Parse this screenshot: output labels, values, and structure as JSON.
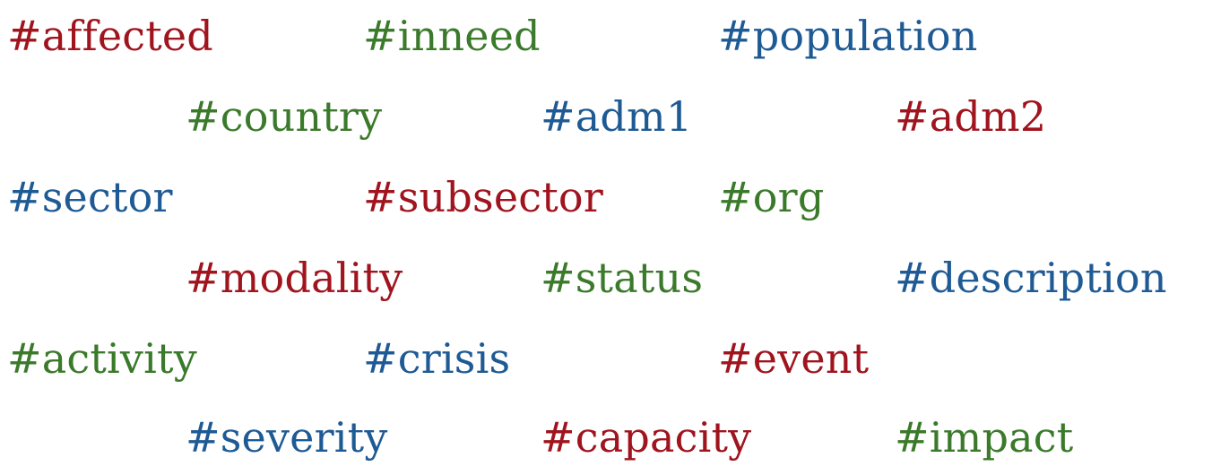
{
  "colors": {
    "red": "#a0141e",
    "green": "#3a7a2a",
    "blue": "#1e5a94"
  },
  "tags": [
    {
      "text": "#affected",
      "color": "red"
    },
    {
      "text": "#inneed",
      "color": "green"
    },
    {
      "text": "#population",
      "color": "blue"
    },
    {
      "text": "#country",
      "color": "green"
    },
    {
      "text": "#adm1",
      "color": "blue"
    },
    {
      "text": "#adm2",
      "color": "red"
    },
    {
      "text": "#sector",
      "color": "blue"
    },
    {
      "text": "#subsector",
      "color": "red"
    },
    {
      "text": "#org",
      "color": "green"
    },
    {
      "text": "#modality",
      "color": "red"
    },
    {
      "text": "#status",
      "color": "green"
    },
    {
      "text": "#description",
      "color": "blue"
    },
    {
      "text": "#activity",
      "color": "green"
    },
    {
      "text": "#crisis",
      "color": "blue"
    },
    {
      "text": "#event",
      "color": "red"
    },
    {
      "text": "#severity",
      "color": "blue"
    },
    {
      "text": "#capacity",
      "color": "red"
    },
    {
      "text": "#impact",
      "color": "green"
    }
  ]
}
